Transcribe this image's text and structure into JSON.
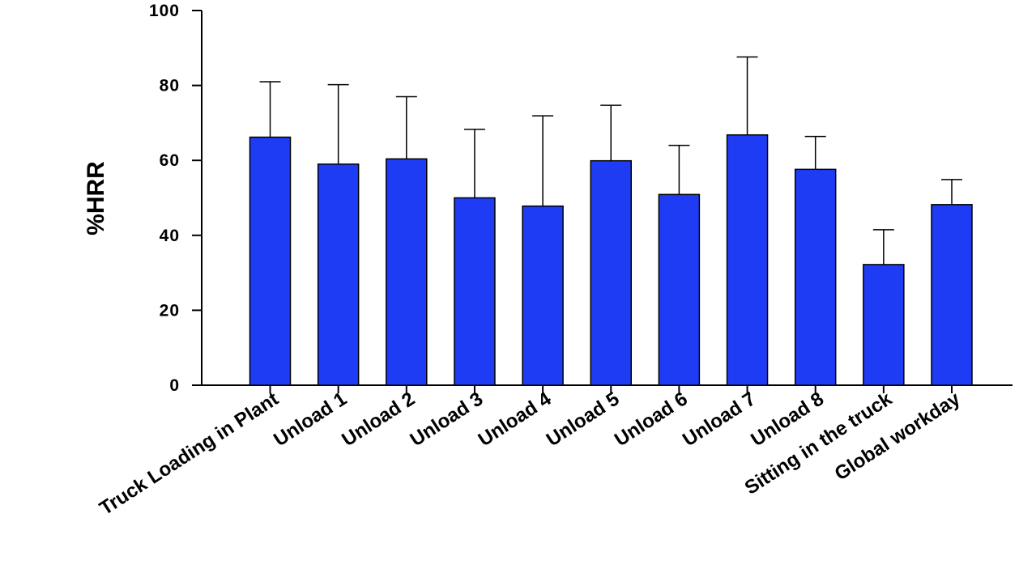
{
  "chart_data": {
    "type": "bar",
    "title": "",
    "xlabel": "",
    "ylabel": "%HRR",
    "ylim": [
      0,
      100
    ],
    "yticks": [
      0,
      20,
      40,
      60,
      80,
      100
    ],
    "grid": false,
    "bar_color": "#1f3cf5",
    "categories": [
      "Truck Loading in Plant",
      "Unload 1",
      "Unload 2",
      "Unload 3",
      "Unload 4",
      "Unload 5",
      "Unload 6",
      "Unload 7",
      "Unload 8",
      "Sitting in the truck",
      "Global workday"
    ],
    "series": [
      {
        "values": [
          66.2,
          59.0,
          60.4,
          50.0,
          47.8,
          59.9,
          50.9,
          66.8,
          57.6,
          32.2,
          48.2
        ],
        "error_upper": [
          81.0,
          80.2,
          77.0,
          68.3,
          71.9,
          74.7,
          64.0,
          87.6,
          66.4,
          41.5,
          54.9
        ]
      }
    ]
  }
}
